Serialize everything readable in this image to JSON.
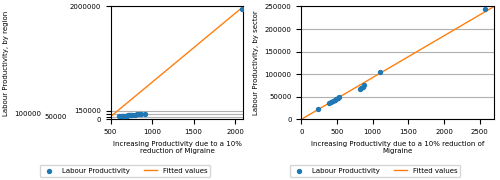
{
  "chart_data": [
    {
      "type": "scatter",
      "x_label": "Increasing Productivity due to a 10% reduction of Migraine",
      "y_label": "Labour Productivity, by region",
      "series": [
        {
          "name": "Labour Productivity",
          "type": "scatter",
          "marker": "o",
          "x": [
            600,
            630,
            640,
            655,
            665,
            675,
            685,
            695,
            710,
            720,
            730,
            745,
            760,
            790,
            820,
            850,
            870,
            920,
            2080
          ],
          "values": [
            53000,
            57000,
            59000,
            61000,
            62500,
            64000,
            65500,
            67000,
            69000,
            71000,
            73000,
            76000,
            79000,
            83000,
            87000,
            90000,
            93000,
            97000,
            1960000
          ]
        },
        {
          "name": "Fitted values",
          "type": "line",
          "x": [
            500,
            2100
          ],
          "values": [
            48000,
            2000000
          ]
        }
      ],
      "xlim": [
        500,
        2100
      ],
      "ylim": [
        0,
        2000000
      ],
      "xticks": [
        500,
        1000,
        1500,
        2000
      ],
      "yticks": [
        0,
        50000,
        100000,
        150000,
        2000000
      ],
      "grid": "y",
      "legend": "below"
    },
    {
      "type": "scatter",
      "x_label": "Increasing Productivity due to a 10% reduction of Migraine",
      "y_label": "Labour Productivity, by sector",
      "series": [
        {
          "name": "Labour Productivity",
          "type": "scatter",
          "marker": "o",
          "x": [
            230,
            390,
            420,
            450,
            470,
            490,
            510,
            530,
            820,
            840,
            860,
            880,
            1100,
            2580
          ],
          "values": [
            22000,
            37000,
            39000,
            41000,
            43000,
            45000,
            47000,
            50000,
            68000,
            70000,
            72000,
            76000,
            105000,
            245000
          ]
        },
        {
          "name": "Fitted values",
          "type": "line",
          "x": [
            0,
            2700
          ],
          "values": [
            0,
            250000
          ]
        }
      ],
      "xlim": [
        0,
        2700
      ],
      "ylim": [
        0,
        250000
      ],
      "xticks": [
        0,
        500,
        1000,
        1500,
        2000,
        2500
      ],
      "yticks": [
        0,
        50000,
        100000,
        150000,
        200000,
        250000
      ],
      "grid": "y",
      "legend": "below"
    }
  ]
}
